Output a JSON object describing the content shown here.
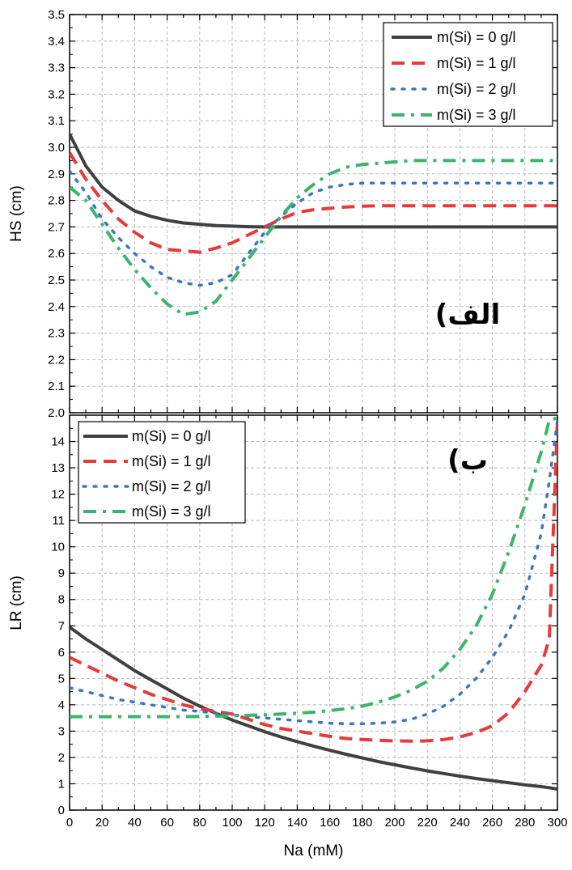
{
  "chart_data": [
    {
      "type": "line",
      "panel_label": "(الف",
      "ylabel": "HS (cm)",
      "xlabel": "",
      "xlim": [
        0,
        300
      ],
      "ylim": [
        2.0,
        3.5
      ],
      "y_ticks": [
        "2.0",
        "2.1",
        "2.2",
        "2.3",
        "2.4",
        "2.5",
        "2.6",
        "2.7",
        "2.8",
        "2.9",
        "3.0",
        "3.1",
        "3.2",
        "3.3",
        "3.4",
        "3.5"
      ],
      "grid": true,
      "legend_position": "top-right",
      "x": [
        0,
        10,
        20,
        30,
        40,
        50,
        60,
        70,
        80,
        90,
        100,
        110,
        120,
        130,
        140,
        150,
        160,
        170,
        180,
        190,
        200,
        210,
        220,
        230,
        240,
        250,
        260,
        270,
        280,
        290,
        300
      ],
      "series": [
        {
          "name": "m(Si) = 0 g/l",
          "color": "#404040",
          "dash": "solid",
          "values": [
            3.05,
            2.93,
            2.85,
            2.8,
            2.76,
            2.74,
            2.725,
            2.715,
            2.71,
            2.705,
            2.703,
            2.701,
            2.7,
            2.7,
            2.7,
            2.7,
            2.7,
            2.7,
            2.7,
            2.7,
            2.7,
            2.7,
            2.7,
            2.7,
            2.7,
            2.7,
            2.7,
            2.7,
            2.7,
            2.7,
            2.7
          ]
        },
        {
          "name": "m(Si) = 1 g/l",
          "color": "#e8393b",
          "dash": "dash",
          "values": [
            2.98,
            2.88,
            2.8,
            2.73,
            2.68,
            2.64,
            2.615,
            2.61,
            2.605,
            2.62,
            2.64,
            2.67,
            2.7,
            2.73,
            2.755,
            2.765,
            2.77,
            2.775,
            2.778,
            2.78,
            2.78,
            2.78,
            2.78,
            2.78,
            2.78,
            2.78,
            2.78,
            2.78,
            2.78,
            2.78,
            2.78
          ]
        },
        {
          "name": "m(Si) = 2 g/l",
          "color": "#3a76c4",
          "dash": "dot",
          "values": [
            2.91,
            2.83,
            2.73,
            2.66,
            2.6,
            2.55,
            2.51,
            2.49,
            2.48,
            2.49,
            2.52,
            2.6,
            2.68,
            2.74,
            2.79,
            2.83,
            2.85,
            2.86,
            2.865,
            2.865,
            2.865,
            2.865,
            2.865,
            2.865,
            2.865,
            2.865,
            2.865,
            2.865,
            2.865,
            2.865,
            2.865
          ]
        },
        {
          "name": "m(Si) = 3 g/l",
          "color": "#3bb56c",
          "dash": "dashdot",
          "values": [
            2.85,
            2.8,
            2.71,
            2.62,
            2.54,
            2.47,
            2.41,
            2.37,
            2.38,
            2.42,
            2.5,
            2.58,
            2.66,
            2.74,
            2.81,
            2.86,
            2.9,
            2.925,
            2.935,
            2.94,
            2.945,
            2.95,
            2.95,
            2.95,
            2.95,
            2.95,
            2.95,
            2.95,
            2.95,
            2.95,
            2.95
          ]
        }
      ]
    },
    {
      "type": "line",
      "panel_label": "(ب",
      "ylabel": "LR (cm)",
      "xlabel": "Na (mM)",
      "xlim": [
        0,
        300
      ],
      "ylim": [
        0,
        15
      ],
      "x_ticks": [
        "0",
        "20",
        "40",
        "60",
        "80",
        "100",
        "120",
        "140",
        "160",
        "180",
        "200",
        "220",
        "240",
        "260",
        "280",
        "300"
      ],
      "y_ticks": [
        "0",
        "1",
        "2",
        "3",
        "4",
        "5",
        "6",
        "7",
        "8",
        "9",
        "10",
        "11",
        "12",
        "13",
        "14"
      ],
      "grid": true,
      "legend_position": "top-left",
      "x": [
        0,
        10,
        20,
        30,
        40,
        50,
        60,
        70,
        80,
        90,
        100,
        110,
        120,
        130,
        140,
        150,
        160,
        170,
        180,
        190,
        200,
        210,
        220,
        230,
        240,
        250,
        260,
        270,
        280,
        290,
        295,
        300
      ],
      "series": [
        {
          "name": "m(Si) = 0 g/l",
          "color": "#404040",
          "dash": "solid",
          "values": [
            6.95,
            6.5,
            6.1,
            5.7,
            5.3,
            4.95,
            4.6,
            4.25,
            3.95,
            3.68,
            3.42,
            3.2,
            2.98,
            2.78,
            2.6,
            2.43,
            2.27,
            2.12,
            1.98,
            1.84,
            1.72,
            1.6,
            1.49,
            1.39,
            1.29,
            1.2,
            1.12,
            1.04,
            0.96,
            0.89,
            0.85,
            0.8
          ]
        },
        {
          "name": "m(Si) = 1 g/l",
          "color": "#e8393b",
          "dash": "dash",
          "values": [
            5.8,
            5.5,
            5.2,
            4.9,
            4.65,
            4.4,
            4.2,
            4.0,
            3.85,
            3.75,
            3.65,
            3.45,
            3.25,
            3.1,
            3.0,
            2.9,
            2.8,
            2.72,
            2.68,
            2.65,
            2.63,
            2.62,
            2.63,
            2.68,
            2.78,
            2.95,
            3.2,
            3.7,
            4.5,
            5.5,
            6.5,
            14.8
          ]
        },
        {
          "name": "m(Si) = 2 g/l",
          "color": "#3a76c4",
          "dash": "dot",
          "values": [
            4.65,
            4.5,
            4.35,
            4.2,
            4.1,
            4.0,
            3.9,
            3.8,
            3.75,
            3.68,
            3.62,
            3.55,
            3.5,
            3.45,
            3.4,
            3.35,
            3.3,
            3.28,
            3.28,
            3.3,
            3.35,
            3.45,
            3.65,
            3.95,
            4.4,
            5.0,
            5.8,
            6.8,
            8.2,
            10.5,
            12.5,
            14.8
          ]
        },
        {
          "name": "m(Si) = 3 g/l",
          "color": "#3bb56c",
          "dash": "dashdot",
          "values": [
            3.55,
            3.55,
            3.55,
            3.55,
            3.55,
            3.55,
            3.55,
            3.55,
            3.56,
            3.57,
            3.58,
            3.6,
            3.62,
            3.65,
            3.68,
            3.72,
            3.78,
            3.85,
            3.95,
            4.1,
            4.3,
            4.55,
            4.9,
            5.4,
            6.1,
            7.0,
            8.2,
            9.8,
            11.6,
            13.6,
            14.8,
            14.9
          ]
        }
      ]
    }
  ]
}
